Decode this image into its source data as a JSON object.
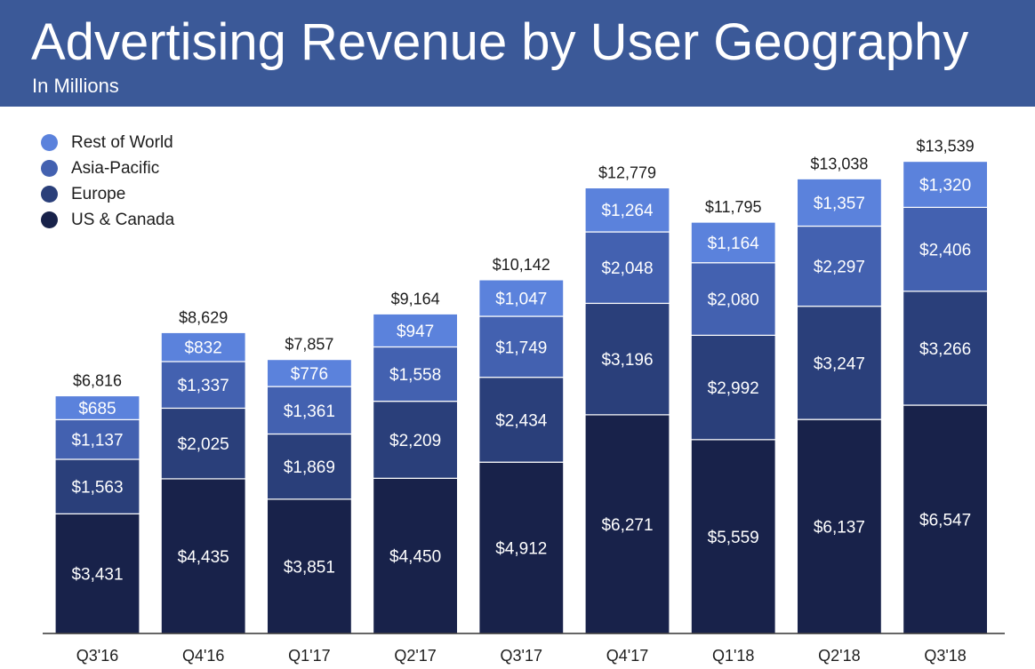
{
  "header": {
    "title": "Advertising Revenue by User Geography",
    "subtitle": "In Millions"
  },
  "colors": {
    "header_bg": "#3b5998",
    "rest_of_world": "#5b82dc",
    "asia_pacific": "#4361b0",
    "europe": "#2a3f7a",
    "us_canada": "#18224a"
  },
  "legend": [
    {
      "label": "Rest of World",
      "color": "#5b82dc"
    },
    {
      "label": "Asia-Pacific",
      "color": "#4361b0"
    },
    {
      "label": "Europe",
      "color": "#2a3f7a"
    },
    {
      "label": "US & Canada",
      "color": "#18224a"
    }
  ],
  "chart_data": {
    "type": "bar",
    "stacked": true,
    "title": "Advertising Revenue by User Geography",
    "subtitle": "In Millions",
    "categories": [
      "Q3'16",
      "Q4'16",
      "Q1'17",
      "Q2'17",
      "Q3'17",
      "Q4'17",
      "Q1'18",
      "Q2'18",
      "Q3'18"
    ],
    "series": [
      {
        "name": "US & Canada",
        "color": "#18224a",
        "values": [
          3431,
          4435,
          3851,
          4450,
          4912,
          6271,
          5559,
          6137,
          6547
        ]
      },
      {
        "name": "Europe",
        "color": "#2a3f7a",
        "values": [
          1563,
          2025,
          1869,
          2209,
          2434,
          3196,
          2992,
          3247,
          3266
        ]
      },
      {
        "name": "Asia-Pacific",
        "color": "#4361b0",
        "values": [
          1137,
          1337,
          1361,
          1558,
          1749,
          2048,
          2080,
          2297,
          2406
        ]
      },
      {
        "name": "Rest of World",
        "color": "#5b82dc",
        "values": [
          685,
          832,
          776,
          947,
          1047,
          1264,
          1164,
          1357,
          1320
        ]
      }
    ],
    "totals": [
      6816,
      8629,
      7857,
      9164,
      10142,
      12779,
      11795,
      13038,
      13539
    ],
    "value_prefix": "$",
    "ylim": [
      0,
      14400
    ],
    "grid": false,
    "legend_position": "top-left",
    "xlabel": "",
    "ylabel": ""
  }
}
